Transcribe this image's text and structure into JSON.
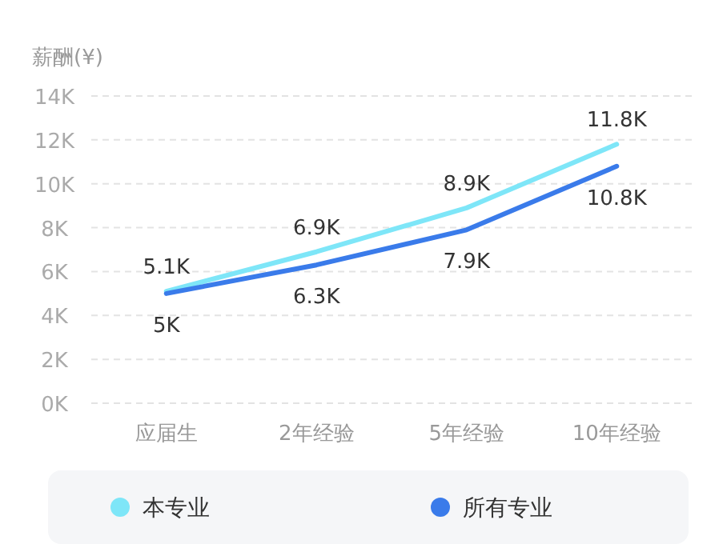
{
  "chart_data": {
    "type": "line",
    "ylabel": "薪酬(¥)",
    "categories": [
      "应届生",
      "2年经验",
      "5年经验",
      "10年经验"
    ],
    "series": [
      {
        "name": "本专业",
        "color": "#7ee6f8",
        "values": [
          5.1,
          6.9,
          8.9,
          11.8
        ],
        "value_labels": [
          "5.1K",
          "6.9K",
          "8.9K",
          "11.8K"
        ]
      },
      {
        "name": "所有专业",
        "color": "#3a7bea",
        "values": [
          5,
          6.3,
          7.9,
          10.8
        ],
        "value_labels": [
          "5K",
          "6.3K",
          "7.9K",
          "10.8K"
        ]
      }
    ],
    "ylim": [
      0,
      14
    ],
    "yticks": [
      {
        "value": 0,
        "label": "0K"
      },
      {
        "value": 2,
        "label": "2K"
      },
      {
        "value": 4,
        "label": "4K"
      },
      {
        "value": 6,
        "label": "6K"
      },
      {
        "value": 8,
        "label": "8K"
      },
      {
        "value": 10,
        "label": "10K"
      },
      {
        "value": 12,
        "label": "12K"
      },
      {
        "value": 14,
        "label": "14K"
      }
    ],
    "grid": "y",
    "legend": "bottom"
  }
}
